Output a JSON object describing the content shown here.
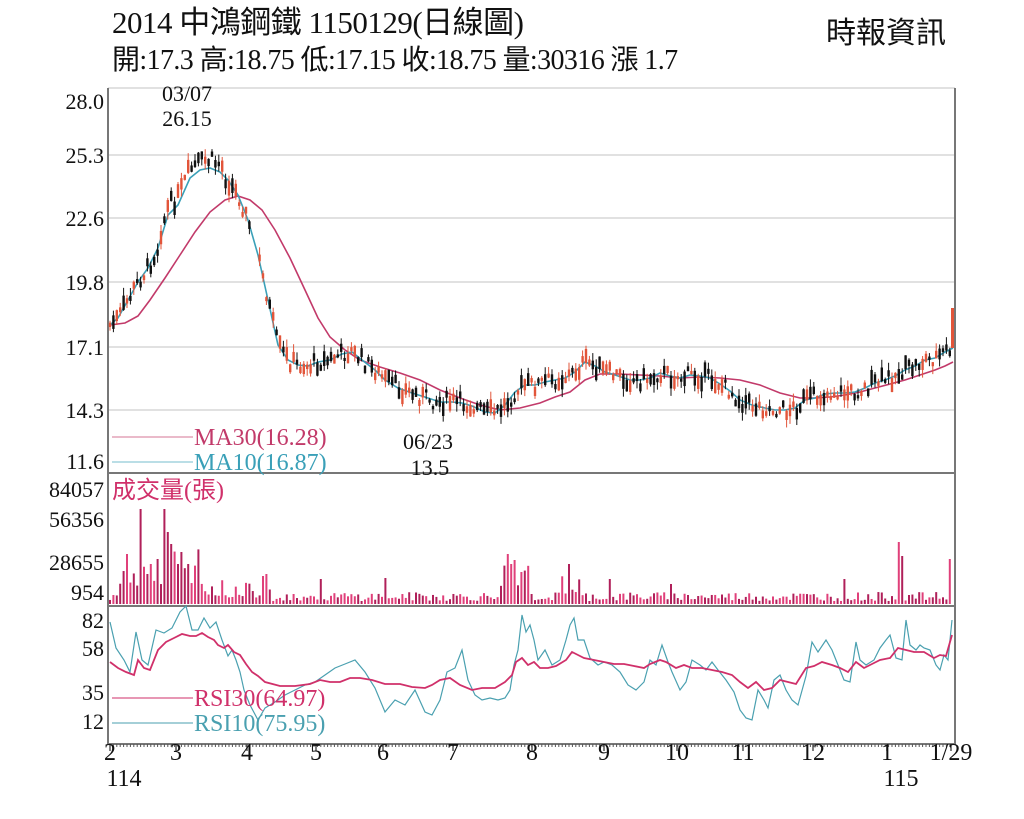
{
  "header": {
    "title": "2014  中鴻鋼鐵 1150129(日線圖)",
    "subtitle": "開:17.3 高:18.75 低:17.15 收:18.75 量:30316 漲 1.7",
    "brand": "時報資訊"
  },
  "colors": {
    "up_candle": "#e2553a",
    "down_candle": "#111111",
    "ma30": "#c23a6a",
    "ma10": "#3aa0b8",
    "volume": "#e0407a",
    "rsi30": "#d0306a",
    "rsi10": "#4aa0b0",
    "grid": "#cfcfcf",
    "frame": "#777777"
  },
  "chart_data": [
    {
      "type": "candlestick",
      "title": "2014 中鴻鋼鐵 1150129(日線圖)",
      "panel": "price",
      "ylabel": "",
      "yticks": [
        28.0,
        25.3,
        22.6,
        19.8,
        17.1,
        14.3,
        11.6
      ],
      "ylim": [
        11.6,
        28.0
      ],
      "grid": true,
      "last_bar": {
        "open": 17.3,
        "high": 18.75,
        "low": 17.15,
        "close": 18.75,
        "volume": 30316,
        "change": 1.7
      },
      "annotations": [
        {
          "label": "03/07",
          "value": "26.15",
          "type": "high"
        },
        {
          "label": "06/23",
          "value": "13.5",
          "type": "low"
        }
      ],
      "legend": [
        {
          "name": "MA30",
          "value": "16.28",
          "label": "MA30(16.28)"
        },
        {
          "name": "MA10",
          "value": "16.87",
          "label": "MA10(16.87)"
        }
      ],
      "monthly_close_approx": {
        "x": [
          "2",
          "3",
          "4",
          "5",
          "6",
          "7",
          "8",
          "9",
          "10",
          "11",
          "12",
          "1",
          "1/29"
        ],
        "close": [
          18.9,
          24.8,
          20.5,
          16.3,
          15.2,
          14.0,
          15.8,
          16.3,
          16.0,
          14.3,
          15.6,
          16.8,
          18.75
        ],
        "ma30": [
          18.0,
          22.0,
          23.2,
          17.8,
          16.0,
          15.0,
          14.8,
          16.2,
          16.1,
          15.6,
          15.0,
          15.6,
          16.28
        ],
        "ma10": [
          18.3,
          24.2,
          21.5,
          16.2,
          15.5,
          14.2,
          15.4,
          16.3,
          16.0,
          14.6,
          15.4,
          16.5,
          16.87
        ]
      }
    },
    {
      "type": "bar",
      "panel": "volume",
      "title": "成交量(張)",
      "yticks": [
        84057,
        56356,
        28655,
        954
      ],
      "ylim": [
        0,
        84057
      ],
      "peaks": [
        {
          "x": "2 (mid Feb)",
          "value": 57000
        },
        {
          "x": "3 (early Mar)",
          "value": 57000
        },
        {
          "x": "3 (mid Mar)",
          "value": 48000
        },
        {
          "x": "7 (late Jul)",
          "value": 22000
        },
        {
          "x": "8 (mid Aug)",
          "value": 19000
        },
        {
          "x": "1 (mid Jan)",
          "value": 32000
        },
        {
          "x": "1/29",
          "value": 30316
        }
      ]
    },
    {
      "type": "line",
      "panel": "rsi",
      "yticks": [
        82,
        58,
        35,
        12
      ],
      "ylim": [
        12,
        82
      ],
      "legend": [
        {
          "name": "RSI30",
          "value": "64.97",
          "label": "RSI30(64.97)"
        },
        {
          "name": "RSI10",
          "value": "75.95",
          "label": "RSI10(75.95)"
        }
      ],
      "series_monthly_approx": {
        "x": [
          "2",
          "3",
          "4",
          "5",
          "6",
          "7",
          "8",
          "9",
          "10",
          "11",
          "12",
          "1",
          "1/29"
        ],
        "rsi30": [
          52,
          68,
          58,
          41,
          38,
          36,
          55,
          55,
          54,
          44,
          54,
          60,
          64.97
        ],
        "rsi10": [
          65,
          80,
          40,
          40,
          25,
          35,
          72,
          60,
          60,
          20,
          62,
          72,
          75.95
        ]
      }
    }
  ],
  "axes": {
    "price_ticks": [
      "28.0",
      "25.3",
      "22.6",
      "19.8",
      "17.1",
      "14.3",
      "11.6"
    ],
    "volume_ticks": [
      "84057",
      "56356",
      "28655",
      "954"
    ],
    "rsi_ticks": [
      "82",
      "58",
      "35",
      "12"
    ],
    "x_ticks": [
      "2",
      "3",
      "4",
      "5",
      "6",
      "7",
      "8",
      "9",
      "10",
      "11",
      "12",
      "1",
      "1/29"
    ],
    "x_years": [
      "114",
      "115"
    ]
  },
  "annotations": {
    "high_date": "03/07",
    "high_value": "26.15",
    "low_date": "06/23",
    "low_value": "13.5"
  },
  "legends": {
    "ma30": "MA30(16.28)",
    "ma10": "MA10(16.87)",
    "volume_title": "成交量(張)",
    "rsi30": "RSI30(64.97)",
    "rsi10": "RSI10(75.95)"
  }
}
